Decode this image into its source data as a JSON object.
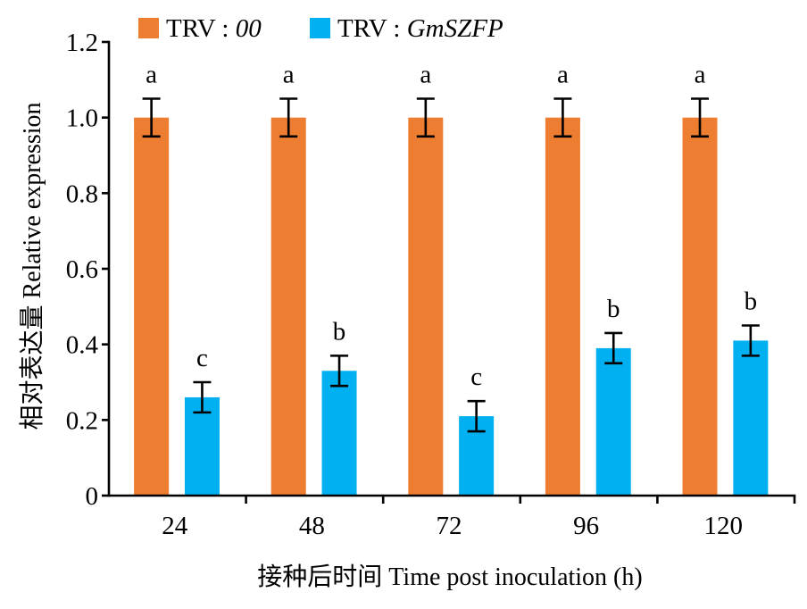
{
  "chart_data": {
    "type": "bar",
    "categories": [
      "24",
      "48",
      "72",
      "96",
      "120"
    ],
    "series": [
      {
        "name": "TRV : 00",
        "color": "#ED7D31",
        "values": [
          1.0,
          1.0,
          1.0,
          1.0,
          1.0
        ],
        "errors": [
          0.05,
          0.05,
          0.05,
          0.05,
          0.05
        ],
        "labels": [
          "a",
          "a",
          "a",
          "a",
          "a"
        ]
      },
      {
        "name": "TRV : GmSZFP",
        "color": "#00B0F0",
        "values": [
          0.26,
          0.33,
          0.21,
          0.39,
          0.41
        ],
        "errors": [
          0.04,
          0.04,
          0.04,
          0.04,
          0.04
        ],
        "labels": [
          "c",
          "b",
          "c",
          "b",
          "b"
        ]
      }
    ],
    "xlabel": "接种后时间 Time post inoculation (h)",
    "ylabel": "相对表达量 Relative expression",
    "ylim": [
      0,
      1.2
    ],
    "yticks": [
      0,
      0.2,
      0.4,
      0.6,
      0.8,
      1.0,
      1.2
    ],
    "ytick_labels": [
      "0",
      "0.2",
      "0.4",
      "0.6",
      "0.8",
      "1.0",
      "1.2"
    ],
    "grid": false,
    "legend": "top",
    "error_bars": true
  }
}
